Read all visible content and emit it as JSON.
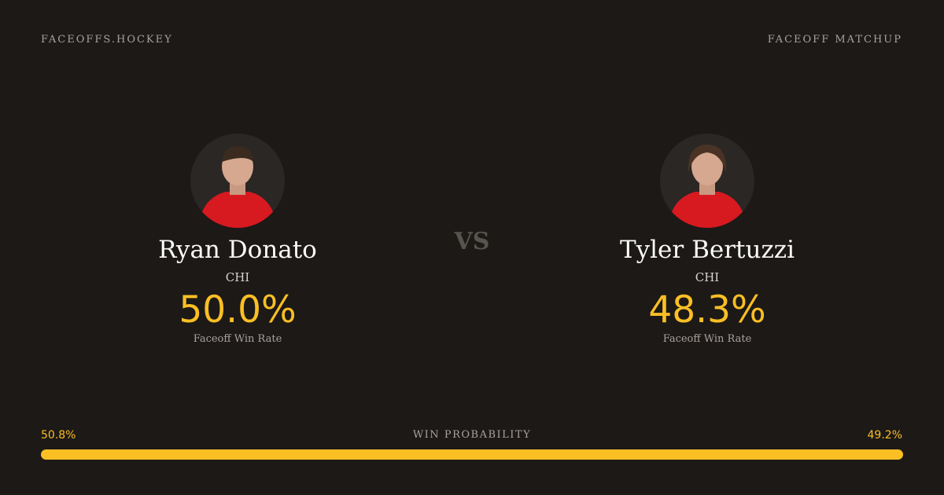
{
  "header": {
    "site": "FACEOFFS.HOCKEY",
    "label": "FACEOFF MATCHUP"
  },
  "players": [
    {
      "name": "Ryan Donato",
      "team": "CHI",
      "win_rate": "50.0%",
      "win_rate_label": "Faceoff Win Rate"
    },
    {
      "name": "Tyler Bertuzzi",
      "team": "CHI",
      "win_rate": "48.3%",
      "win_rate_label": "Faceoff Win Rate"
    }
  ],
  "vs": "VS",
  "win_probability": {
    "title": "WIN PROBABILITY",
    "left": {
      "value": 50.8,
      "label": "50.8%"
    },
    "right": {
      "value": 49.2,
      "label": "49.2%"
    },
    "color": "#fbbf24"
  }
}
